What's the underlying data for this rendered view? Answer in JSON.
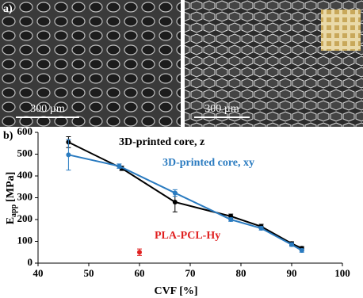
{
  "figure": {
    "panel_a": "a)",
    "panel_b": "b)",
    "scale_left": "300 µm",
    "scale_right": "300 µm"
  },
  "chart_data": {
    "type": "line",
    "ylabel": {
      "main": "E",
      "sub": "app",
      "unit": "[MPa]"
    },
    "xlabel": "CVF [%]",
    "xlim": [
      40,
      100
    ],
    "xticks": [
      40,
      50,
      60,
      70,
      80,
      90,
      100
    ],
    "ylim": [
      0,
      600
    ],
    "yticks": [
      0,
      100,
      200,
      300,
      400,
      500,
      600
    ],
    "series": [
      {
        "name": "3D-printed core, z",
        "color": "#000000",
        "x": [
          46,
          56.5,
          67,
          78,
          84,
          90,
          92
        ],
        "values": [
          555,
          435,
          280,
          215,
          168,
          90,
          68
        ],
        "errors": [
          25,
          10,
          45,
          10,
          10,
          8,
          8
        ]
      },
      {
        "name": "3D-printed core, xy",
        "color": "#2a7bc0",
        "x": [
          46,
          56,
          67,
          78,
          84,
          90,
          92
        ],
        "values": [
          497,
          445,
          322,
          200,
          160,
          85,
          58
        ],
        "errors": [
          70,
          10,
          15,
          8,
          8,
          8,
          8
        ]
      },
      {
        "name": "PLA-PCL-Hy",
        "color": "#e02020",
        "x": [
          60
        ],
        "values": [
          50
        ],
        "errors": [
          15
        ]
      }
    ]
  }
}
